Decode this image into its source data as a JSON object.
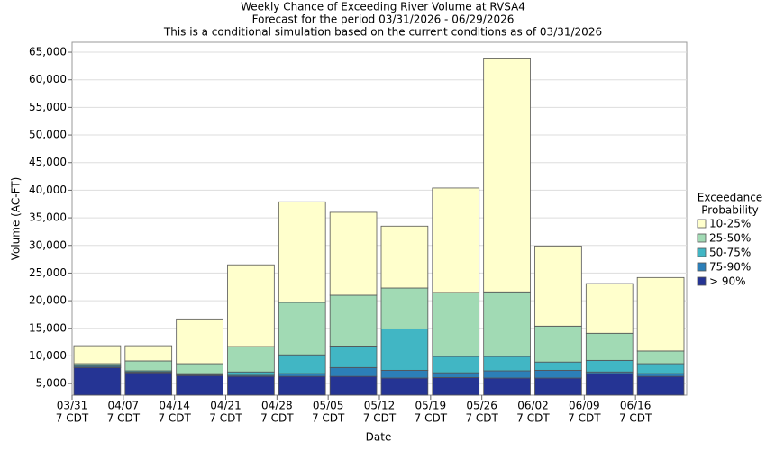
{
  "chart_data": {
    "type": "floating-bar",
    "title": "Weekly Chance of Exceeding River Volume at RVSA4",
    "subtitle": "Forecast for the period 03/31/2026 - 06/29/2026",
    "note": "This is a conditional simulation based on the current conditions as of 03/31/2026",
    "x_label": "Date",
    "y_label": "Volume (AC-FT)",
    "legend_title": [
      "Exceedance",
      "Probability"
    ],
    "categories": [
      [
        "03/31",
        "7 CDT"
      ],
      [
        "04/07",
        "7 CDT"
      ],
      [
        "04/14",
        "7 CDT"
      ],
      [
        "04/21",
        "7 CDT"
      ],
      [
        "04/28",
        "7 CDT"
      ],
      [
        "05/05",
        "7 CDT"
      ],
      [
        "05/12",
        "7 CDT"
      ],
      [
        "05/19",
        "7 CDT"
      ],
      [
        "05/26",
        "7 CDT"
      ],
      [
        "06/02",
        "7 CDT"
      ],
      [
        "06/09",
        "7 CDT"
      ],
      [
        "06/16",
        "7 CDT"
      ]
    ],
    "series": [
      {
        "name": "> 90%",
        "color": "#253494",
        "values": [
          7900,
          6950,
          6450,
          6300,
          6300,
          6300,
          6000,
          6100,
          6000,
          6000,
          6800,
          6300
        ]
      },
      {
        "name": "75-90%",
        "color": "#2c7fb8",
        "values": [
          8100,
          7100,
          6600,
          6500,
          6800,
          7900,
          7400,
          6950,
          7300,
          7400,
          7100,
          6800
        ]
      },
      {
        "name": "50-75%",
        "color": "#41b6c4",
        "values": [
          8300,
          7300,
          6800,
          7100,
          10200,
          11800,
          14900,
          9900,
          9900,
          8900,
          9200,
          8600
        ]
      },
      {
        "name": "25-50%",
        "color": "#a1dab4",
        "values": [
          8600,
          9100,
          8600,
          11700,
          19700,
          21000,
          22300,
          21500,
          21600,
          15400,
          14100,
          10900
        ]
      },
      {
        "name": "10-25%",
        "color": "#ffffcc",
        "values": [
          11850,
          11850,
          16700,
          26500,
          37900,
          36000,
          33500,
          40400,
          63800,
          29900,
          23100,
          24200
        ]
      }
    ],
    "ylim": [
      2900,
      66800
    ],
    "yticks": [
      {
        "value": 5000,
        "label": "5,000"
      },
      {
        "value": 10000,
        "label": "10,000"
      },
      {
        "value": 15000,
        "label": "15,000"
      },
      {
        "value": 20000,
        "label": "20,000"
      },
      {
        "value": 25000,
        "label": "25,000"
      },
      {
        "value": 30000,
        "label": "30,000"
      },
      {
        "value": 35000,
        "label": "35,000"
      },
      {
        "value": 40000,
        "label": "40,000"
      },
      {
        "value": 45000,
        "label": "45,000"
      },
      {
        "value": 50000,
        "label": "50,000"
      },
      {
        "value": 55000,
        "label": "55,000"
      },
      {
        "value": 60000,
        "label": "60,000"
      },
      {
        "value": 65000,
        "label": "65,000"
      }
    ],
    "grid": true
  }
}
